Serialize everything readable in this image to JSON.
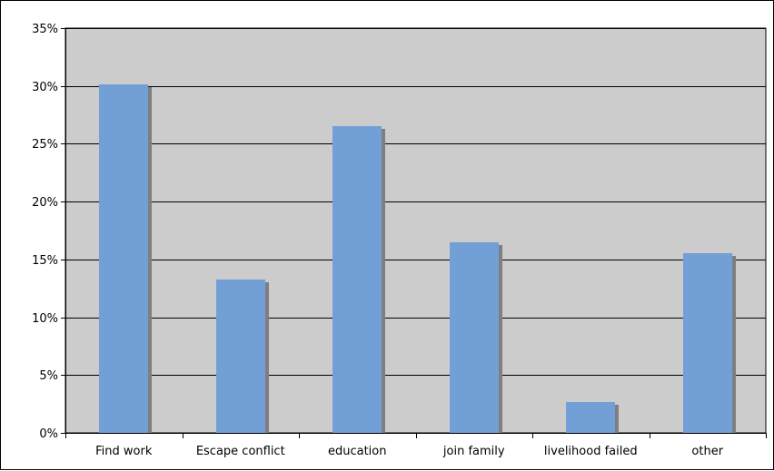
{
  "chart_data": {
    "type": "bar",
    "categories": [
      "Find work",
      "Escape conflict",
      "education",
      "join family",
      "livelihood failed",
      "other"
    ],
    "values": [
      30.1,
      13.3,
      26.5,
      16.5,
      2.7,
      15.5
    ],
    "y_ticks": [
      "0%",
      "5%",
      "10%",
      "15%",
      "20%",
      "25%",
      "30%",
      "35%"
    ],
    "ylim": [
      0,
      35
    ],
    "y_step": 5,
    "title": "",
    "xlabel": "",
    "ylabel": "",
    "grid": true,
    "legend": "none",
    "colors": {
      "bar": "#729fd6",
      "bar_shadow": "#7f7f7f",
      "plot_bg": "#cccccc",
      "gridline": "#000000",
      "axis": "#000000"
    }
  }
}
